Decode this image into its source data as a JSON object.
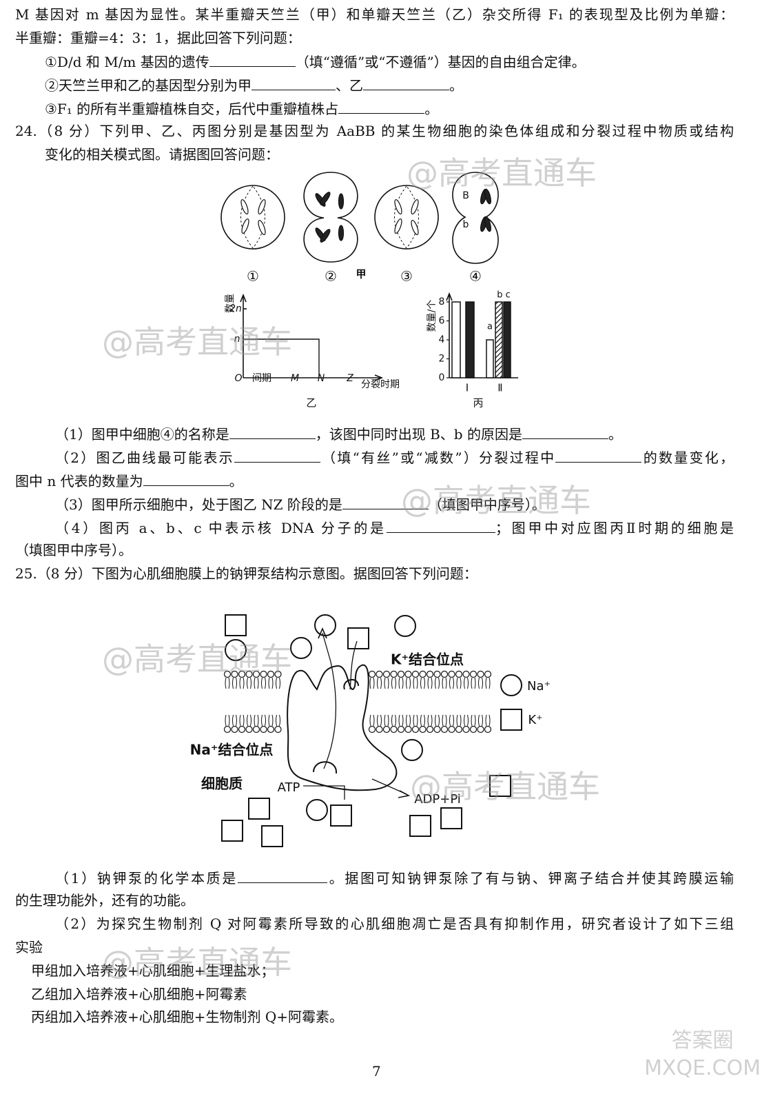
{
  "lines": [
    [
      "M 基因对 m 基因为显性。某半重瓣天竺兰（甲）和单瓣天竺兰（乙）杂交所得 F₁ 的表现型及比例为单瓣："
    ],
    [
      "半重瓣：重瓣=4：3：1，据此回答下列问题："
    ],
    [
      "①D/d 和 M/m 基因的遗传",
      "（填“遵循”或“不遵循”）基因的自由组合定律。"
    ],
    [
      "②天竺兰甲和乙的基因型分别为甲",
      "、乙",
      "。"
    ],
    [
      "③F₁ 的所有半重瓣植株自交，后代中重瓣植株占",
      "。"
    ],
    [
      "24.（8 分）下列甲、乙、丙图分别是基因型为 AaBB 的某生物细胞的染色体组成和分裂过程中物质或结构"
    ],
    [
      "变化的相关模式图。请据图回答问题："
    ],
    [
      "（1）图甲中细胞④的名称是",
      "，该图中同时出现 B、b 的原因是",
      "。"
    ],
    [
      "（2）图乙曲线最可能表示",
      "（填“有丝”或“减数”）分裂过程中",
      "的数量变化，"
    ],
    [
      "图中 n 代表的数量为",
      "。"
    ],
    [
      "（3）图甲所示细胞中，处于图乙 NZ 阶段的是",
      "（填图甲中序号）。"
    ],
    [
      "（4）图丙 a、b、c 中表示核 DNA 分子的是",
      "；图甲中对应图丙Ⅱ时期的细胞是"
    ],
    [
      "（填图甲中序号）。"
    ],
    [
      "25.（8 分）下图为心肌细胞膜上的钠钾泵结构示意图。据图回答下列问题："
    ],
    [
      "（1）钠钾泵的化学本质是",
      "。据图可知钠钾泵除了有与钠、钾离子结合并使其跨膜运输"
    ],
    [
      "的生理功能外，还有的功能。"
    ],
    [
      "（2）为探究生物制剂 Q 对阿霉素所导致的心肌细胞凋亡是否具有抑制作用，研究者设计了如下三组"
    ],
    [
      "实验"
    ],
    [
      "甲组加入培养液+心肌细胞+生理盐水；"
    ],
    [
      "乙组加入培养液+心肌细胞+阿霉素"
    ],
    [
      "丙组加入培养液+心肌细胞+生物制剂 Q+阿霉素。"
    ]
  ],
  "figure_jia": {
    "cell_labels": [
      "①",
      "②",
      "③",
      "④"
    ],
    "gene_labels": [
      "B",
      "b"
    ],
    "caption": "甲"
  },
  "figure_yi": {
    "y_label": "数量",
    "y_ticks": [
      "2n",
      "n"
    ],
    "x_labels": [
      "O",
      "间期",
      "M",
      "N",
      "Z"
    ],
    "x_title": "分裂时期",
    "caption": "乙"
  },
  "figure_bing": {
    "y_label": "数量/个",
    "yticks": [
      0,
      2,
      4,
      6,
      8
    ],
    "groups": [
      {
        "label": "Ⅰ",
        "values": [
          8,
          8
        ]
      },
      {
        "label": "Ⅱ",
        "values": [
          4,
          8,
          8
        ]
      }
    ],
    "bar_labels": [
      "a",
      "b c"
    ],
    "caption": "丙"
  },
  "figure_pump": {
    "k_site": "K⁺结合位点",
    "na_site": "Na⁺结合位点",
    "cytoplasm": "细胞质",
    "atp": "ATP",
    "adp": "ADP+Pi",
    "legend": [
      "Na⁺",
      "K⁺"
    ]
  },
  "watermarks": [
    "@高考直通车",
    "@高考直通车",
    "@高考直通车",
    "@高考直通车",
    "@高考直通车",
    "@高考直通车"
  ],
  "logo": [
    "答案圈",
    "MXQE.COM"
  ],
  "page_number": "7"
}
